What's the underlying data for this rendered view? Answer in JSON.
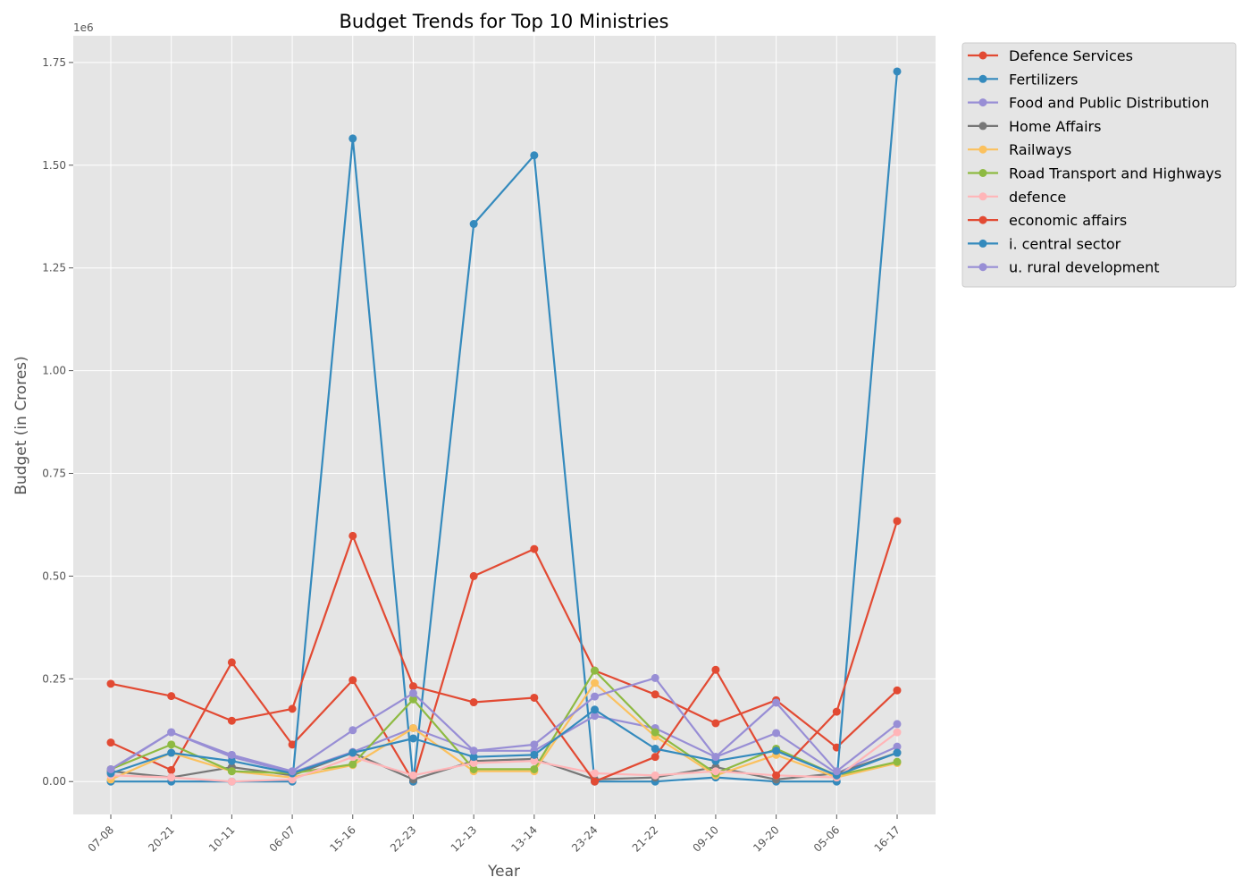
{
  "chart_data": {
    "type": "line",
    "title": "Budget Trends for Top 10 Ministries",
    "xlabel": "Year",
    "ylabel": "Budget (in Crores)",
    "y_offset_label": "1e6",
    "y_scale": 1000000,
    "ylim": [
      -80000,
      1815000
    ],
    "yticks": [
      0,
      250000,
      500000,
      750000,
      1000000,
      1250000,
      1500000,
      1750000
    ],
    "ytick_labels": [
      "0.00",
      "0.25",
      "0.50",
      "0.75",
      "1.00",
      "1.25",
      "1.50",
      "1.75"
    ],
    "grid": true,
    "legend_position": "outside-top-right",
    "categories": [
      "07-08",
      "20-21",
      "10-11",
      "06-07",
      "15-16",
      "22-23",
      "12-13",
      "13-14",
      "23-24",
      "21-22",
      "09-10",
      "19-20",
      "05-06",
      "16-17"
    ],
    "series": [
      {
        "name": "Defence Services",
        "color": "#E24A33",
        "values": [
          95000,
          28000,
          290000,
          90000,
          247000,
          0,
          500000,
          566000,
          270000,
          212000,
          142000,
          198000,
          83000,
          222000
        ]
      },
      {
        "name": "Fertilizers",
        "color": "#348ABD",
        "values": [
          0,
          0,
          0,
          0,
          1565000,
          0,
          1357000,
          1524000,
          0,
          0,
          10000,
          0,
          0,
          1728000
        ]
      },
      {
        "name": "Food and Public Distribution",
        "color": "#988ED5",
        "values": [
          28000,
          120000,
          60000,
          22000,
          72000,
          130000,
          75000,
          75000,
          160000,
          130000,
          60000,
          118000,
          20000,
          85000
        ]
      },
      {
        "name": "Home Affairs",
        "color": "#777777",
        "values": [
          25000,
          10000,
          35000,
          15000,
          70000,
          5000,
          50000,
          55000,
          5000,
          10000,
          35000,
          5000,
          20000,
          70000
        ]
      },
      {
        "name": "Railways",
        "color": "#FBC15E",
        "values": [
          5000,
          70000,
          25000,
          10000,
          40000,
          130000,
          25000,
          25000,
          240000,
          110000,
          15000,
          65000,
          10000,
          45000
        ]
      },
      {
        "name": "Road Transport and Highways",
        "color": "#8EBA42",
        "values": [
          30000,
          90000,
          25000,
          20000,
          42000,
          200000,
          30000,
          30000,
          270000,
          120000,
          20000,
          80000,
          15000,
          48000
        ]
      },
      {
        "name": "defence",
        "color": "#FFB5B8",
        "values": [
          15000,
          10000,
          0,
          5000,
          60000,
          15000,
          45000,
          50000,
          20000,
          15000,
          25000,
          15000,
          10000,
          120000
        ]
      },
      {
        "name": "economic affairs",
        "color": "#E24A33",
        "values": [
          238000,
          208000,
          148000,
          177000,
          598000,
          232000,
          193000,
          204000,
          0,
          60000,
          272000,
          15000,
          170000,
          634000
        ]
      },
      {
        "name": "i. central sector",
        "color": "#348ABD",
        "values": [
          20000,
          70000,
          50000,
          20000,
          70000,
          105000,
          60000,
          65000,
          175000,
          80000,
          50000,
          75000,
          15000,
          70000
        ]
      },
      {
        "name": "u. rural development",
        "color": "#988ED5",
        "values": [
          30000,
          120000,
          65000,
          25000,
          125000,
          215000,
          75000,
          90000,
          207000,
          252000,
          60000,
          192000,
          25000,
          140000
        ]
      }
    ]
  }
}
